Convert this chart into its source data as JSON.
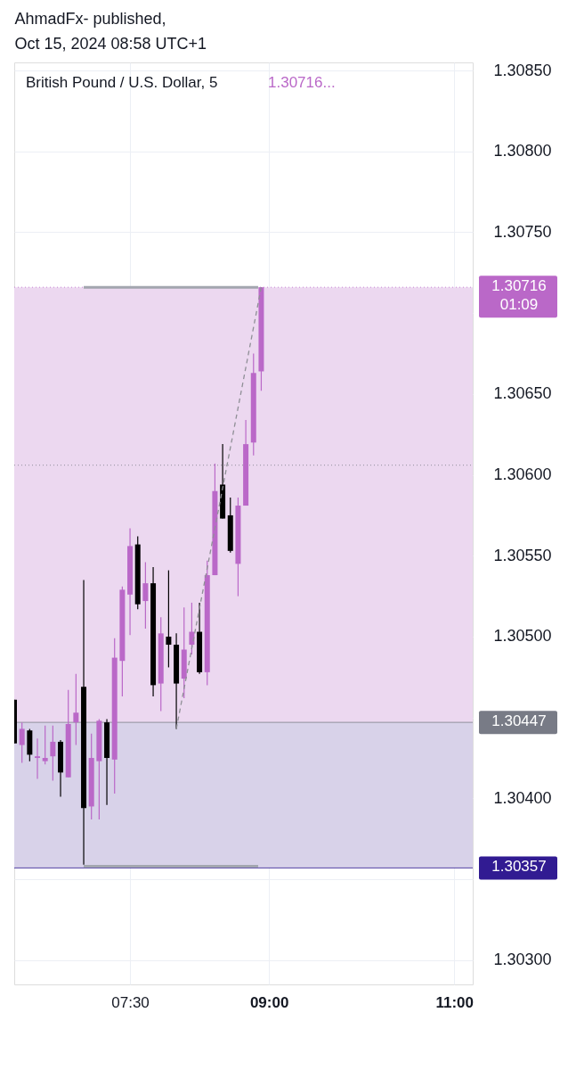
{
  "chart_data": {
    "type": "candlestick",
    "title": "AhmadFx- published,",
    "subtitle": "Oct 15, 2024 08:58 UTC+1",
    "annotations": [
      "British Pound / U.S. Dollar, 5",
      "1.30716..."
    ],
    "x": [
      "2024-10-15T06:15",
      "2024-10-15T06:20",
      "2024-10-15T06:25",
      "2024-10-15T06:30",
      "2024-10-15T06:35",
      "2024-10-15T06:40",
      "2024-10-15T06:45",
      "2024-10-15T06:50",
      "2024-10-15T06:55",
      "2024-10-15T07:00",
      "2024-10-15T07:05",
      "2024-10-15T07:10",
      "2024-10-15T07:15",
      "2024-10-15T07:20",
      "2024-10-15T07:25",
      "2024-10-15T07:30",
      "2024-10-15T07:35",
      "2024-10-15T07:40",
      "2024-10-15T07:45",
      "2024-10-15T07:50",
      "2024-10-15T07:55",
      "2024-10-15T08:00",
      "2024-10-15T08:05",
      "2024-10-15T08:10",
      "2024-10-15T08:15",
      "2024-10-15T08:20",
      "2024-10-15T08:25",
      "2024-10-15T08:30",
      "2024-10-15T08:35",
      "2024-10-15T08:40",
      "2024-10-15T08:45",
      "2024-10-15T08:50",
      "2024-10-15T08:55"
    ],
    "ohlc": [
      [
        1.30461,
        1.30461,
        1.30434,
        1.30434
      ],
      [
        1.30433,
        1.30447,
        1.30422,
        1.30443
      ],
      [
        1.30442,
        1.30443,
        1.30423,
        1.30427
      ],
      [
        1.30425,
        1.30437,
        1.30412,
        1.30426
      ],
      [
        1.30423,
        1.30445,
        1.30421,
        1.30425
      ],
      [
        1.30426,
        1.30445,
        1.30411,
        1.30435
      ],
      [
        1.30435,
        1.30436,
        1.30401,
        1.30416
      ],
      [
        1.30413,
        1.30467,
        1.30413,
        1.30446
      ],
      [
        1.30447,
        1.30477,
        1.30433,
        1.30453
      ],
      [
        1.30469,
        1.30535,
        1.30359,
        1.30394
      ],
      [
        1.30395,
        1.3044,
        1.30387,
        1.30425
      ],
      [
        1.30423,
        1.30449,
        1.30387,
        1.30448
      ],
      [
        1.30447,
        1.30449,
        1.30396,
        1.30425
      ],
      [
        1.30424,
        1.30499,
        1.30403,
        1.30487
      ],
      [
        1.30485,
        1.30531,
        1.30463,
        1.30529
      ],
      [
        1.30526,
        1.30567,
        1.30501,
        1.30556
      ],
      [
        1.30557,
        1.30562,
        1.30517,
        1.3052
      ],
      [
        1.30522,
        1.30546,
        1.30505,
        1.30533
      ],
      [
        1.30533,
        1.30543,
        1.30463,
        1.3047
      ],
      [
        1.30471,
        1.30512,
        1.30454,
        1.30502
      ],
      [
        1.305,
        1.30541,
        1.30481,
        1.30495
      ],
      [
        1.30495,
        1.30502,
        1.30443,
        1.30471
      ],
      [
        1.30474,
        1.30518,
        1.30462,
        1.30492
      ],
      [
        1.30495,
        1.30521,
        1.30489,
        1.30503
      ],
      [
        1.30503,
        1.30521,
        1.30477,
        1.30478
      ],
      [
        1.30478,
        1.30547,
        1.3047,
        1.30538
      ],
      [
        1.30538,
        1.30607,
        1.30538,
        1.3059
      ],
      [
        1.30594,
        1.30619,
        1.30573,
        1.30573
      ],
      [
        1.30575,
        1.30586,
        1.30552,
        1.30553
      ],
      [
        1.30545,
        1.30586,
        1.30525,
        1.30581
      ],
      [
        1.30581,
        1.30634,
        1.30581,
        1.30619
      ],
      [
        1.3062,
        1.30675,
        1.30612,
        1.30663
      ],
      [
        1.30664,
        1.30716,
        1.30652,
        1.30716
      ]
    ],
    "colors": [
      "#000000",
      "#ba68c8",
      "#000000",
      "#ba68c8",
      "#ba68c8",
      "#ba68c8",
      "#000000",
      "#ba68c8",
      "#ba68c8",
      "#000000",
      "#ba68c8",
      "#ba68c8",
      "#000000",
      "#ba68c8",
      "#ba68c8",
      "#ba68c8",
      "#000000",
      "#ba68c8",
      "#000000",
      "#ba68c8",
      "#000000",
      "#000000",
      "#ba68c8",
      "#ba68c8",
      "#000000",
      "#ba68c8",
      "#ba68c8",
      "#000000",
      "#000000",
      "#ba68c8",
      "#ba68c8",
      "#ba68c8",
      "#ba68c8"
    ],
    "series": [
      {
        "type": "line",
        "x": [
          "2024-10-15T07:00",
          "2024-10-15T08:53"
        ],
        "values": [
          1.30716,
          1.30716
        ],
        "color": "#a3a6af",
        "line_style": "solid"
      },
      {
        "type": "line",
        "x": [
          "2024-10-15T07:00",
          "2024-10-15T08:53"
        ],
        "values": [
          1.30358,
          1.30358
        ],
        "color": "#a3a6af",
        "line_style": "solid"
      },
      {
        "type": "line",
        "x": [
          "2024-10-15T08:00",
          "2024-10-15T08:55"
        ],
        "values": [
          1.30443,
          1.30716
        ],
        "color": "#8f8f96",
        "line_style": "dashed"
      }
    ],
    "bands": [
      {
        "axis": "y",
        "from": 1.30447,
        "to": 1.30716,
        "color": "#ecd8f0"
      },
      {
        "axis": "y",
        "from": 1.30357,
        "to": 1.30447,
        "color": "#d8d2e9"
      }
    ],
    "ref_lines": [
      {
        "axis": "y",
        "value": 1.30716,
        "label": "1.30716\n01:09",
        "color": "#ba68c8",
        "line_style": "dotted"
      },
      {
        "axis": "y",
        "value": 1.30606,
        "color": "#787b86",
        "line_style": "dotted"
      },
      {
        "axis": "y",
        "value": 1.30447,
        "label": "1.30447",
        "color": "#787b86",
        "line_style": "solid"
      },
      {
        "axis": "y",
        "value": 1.30357,
        "label": "1.30357",
        "color": "#311b92",
        "line_style": "solid"
      }
    ],
    "xlim": [
      "2024-10-15T06:15",
      "2024-10-15T11:12"
    ],
    "xticks": [
      {
        "value": "2024-10-15T07:30",
        "label": "07:30"
      },
      {
        "value": "2024-10-15T09:00",
        "label": "09:00"
      },
      {
        "value": "2024-10-15T11:00",
        "label": "11:00"
      }
    ],
    "ylim": [
      1.30285,
      1.30855
    ],
    "yticks": [
      {
        "value": 1.303,
        "label": "1.30300"
      },
      {
        "value": 1.3035,
        "label": null
      },
      {
        "value": 1.304,
        "label": "1.30400"
      },
      {
        "value": 1.3045,
        "label": null
      },
      {
        "value": 1.305,
        "label": "1.30500"
      },
      {
        "value": 1.3055,
        "label": "1.30550"
      },
      {
        "value": 1.306,
        "label": "1.30600"
      },
      {
        "value": 1.3065,
        "label": "1.30650"
      },
      {
        "value": 1.307,
        "label": null
      },
      {
        "value": 1.3075,
        "label": "1.30750"
      },
      {
        "value": 1.308,
        "label": "1.30800"
      },
      {
        "value": 1.3085,
        "label": "1.30850"
      }
    ],
    "grid": true
  }
}
